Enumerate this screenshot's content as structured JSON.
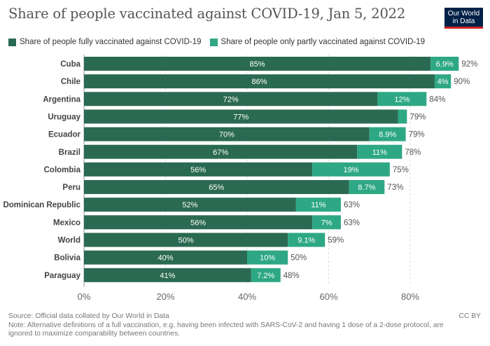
{
  "title": "Share of people vaccinated against COVID-19, Jan 5, 2022",
  "logo": {
    "line1": "Our World",
    "line2": "in Data"
  },
  "footer": {
    "source": "Source: Official data collated by Our World in Data",
    "note_line1": "Note: Alternative definitions of a full vaccination, e.g. having been infected with SARS-CoV-2 and having 1 dose of a 2-dose protocol, are",
    "note_line2": "ignored to maximize comparability between countries.",
    "license": "CC BY"
  },
  "colors": {
    "full": "#2b6a52",
    "partial": "#2ea884",
    "grid": "#dddddd"
  },
  "chart_data": {
    "type": "bar",
    "orientation": "horizontal",
    "stacked": true,
    "title": "Share of people vaccinated against COVID-19, Jan 5, 2022",
    "xlabel": "",
    "ylabel": "",
    "xlim": [
      0,
      92
    ],
    "xticks": [
      0,
      20,
      40,
      60,
      80
    ],
    "xtick_labels": [
      "0%",
      "20%",
      "40%",
      "60%",
      "80%"
    ],
    "grid": "vertical dashed",
    "legend_position": "top-left",
    "categories": [
      "Cuba",
      "Chile",
      "Argentina",
      "Uruguay",
      "Ecuador",
      "Brazil",
      "Colombia",
      "Peru",
      "Dominican Republic",
      "Mexico",
      "World",
      "Bolivia",
      "Paraguay"
    ],
    "series": [
      {
        "name": "Share of people fully vaccinated against COVID-19",
        "values": [
          85,
          86,
          72,
          77,
          70,
          67,
          56,
          65,
          52,
          56,
          50,
          40,
          41
        ],
        "labels": [
          "85%",
          "86%",
          "72%",
          "77%",
          "70%",
          "67%",
          "56%",
          "65%",
          "52%",
          "56%",
          "50%",
          "40%",
          "41%"
        ]
      },
      {
        "name": "Share of people only partly vaccinated against COVID-19",
        "values": [
          6.9,
          4,
          12,
          2.2,
          8.9,
          11,
          19,
          8.7,
          11,
          7,
          9.1,
          10,
          7.2
        ],
        "labels": [
          "6.9%",
          "4%",
          "12%",
          "",
          "8.9%",
          "11%",
          "19%",
          "8.7%",
          "11%",
          "7%",
          "9.1%",
          "10%",
          "7.2%"
        ]
      }
    ],
    "totals": [
      "92%",
      "90%",
      "84%",
      "79%",
      "79%",
      "78%",
      "75%",
      "73%",
      "63%",
      "63%",
      "59%",
      "50%",
      "48%"
    ]
  }
}
